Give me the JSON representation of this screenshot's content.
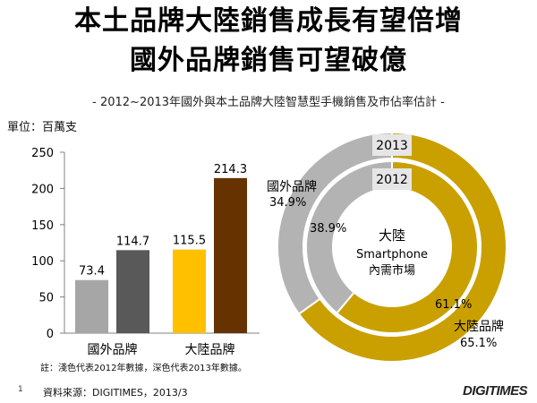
{
  "title": {
    "line1": "本土品牌大陸銷售成長有望倍增",
    "line2": "國外品牌銷售可望破億"
  },
  "subtitle": "- 2012~2013年國外與本土品牌大陸智慧型手機銷售及市佔率估計 -",
  "unit_label": "單位：百萬支",
  "note": "註：淺色代表2012年數據，深色代表2013年數據。",
  "source": "資料來源：DIGITIMES，2013/3",
  "page_number": "1",
  "brand": "DIGITIMES",
  "colors": {
    "foreign_2012": "#a6a6a6",
    "foreign_2013": "#595959",
    "local_2012": "#ffc000",
    "local_2013": "#663300",
    "ring_foreign": "#b3b3b3",
    "ring_local": "#c9a000"
  },
  "chart_data": [
    {
      "type": "bar",
      "categories": [
        "國外品牌",
        "大陸品牌"
      ],
      "series": [
        {
          "values": [
            73.4,
            115.5
          ]
        },
        {
          "values": [
            114.7,
            214.3
          ]
        }
      ],
      "data_labels": [
        [
          "73.4",
          "114.7"
        ],
        [
          "115.5",
          "214.3"
        ]
      ],
      "ylim": [
        0,
        250
      ],
      "yticks": [
        0,
        50,
        100,
        150,
        200,
        250
      ],
      "grid": false,
      "legend": "none"
    },
    {
      "type": "pie",
      "center_label": [
        "大陸",
        "Smartphone",
        "內需市場"
      ],
      "rings": [
        {
          "name": "2013",
          "slices": [
            {
              "label": "國外品牌",
              "value": 34.9
            },
            {
              "label": "大陸品牌",
              "value": 65.1
            }
          ]
        },
        {
          "name": "2012",
          "slices": [
            {
              "label": "國外品牌",
              "value": 38.9
            },
            {
              "label": "大陸品牌",
              "value": 61.1
            }
          ]
        }
      ],
      "slice_labels": {
        "foreign_name": "國外品牌",
        "foreign_2013": "34.9%",
        "foreign_2012": "38.9%",
        "local_name": "大陸品牌",
        "local_2013": "65.1%",
        "local_2012": "61.1%"
      }
    }
  ]
}
